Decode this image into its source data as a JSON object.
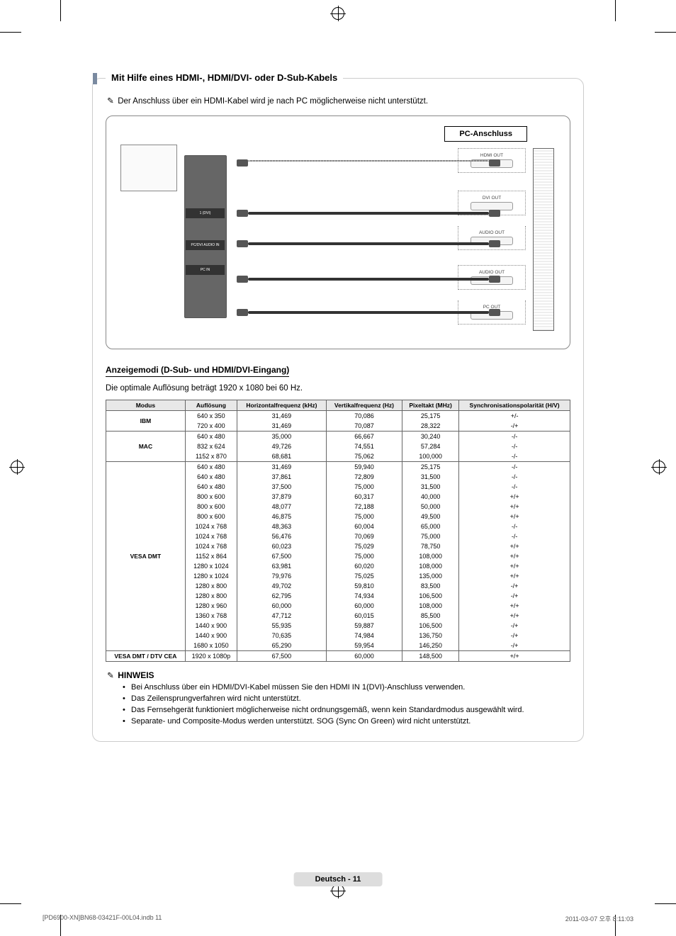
{
  "heading": "Mit Hilfe eines HDMI-, HDMI/DVI- oder D-Sub-Kabels",
  "top_note": "Der Anschluss über ein HDMI-Kabel wird je nach PC möglicherweise nicht unterstützt.",
  "note_icon": "✎",
  "diagram": {
    "pc_label": "PC-Anschluss",
    "ports": {
      "hdmi": "HDMI OUT",
      "dvi": "DVI OUT",
      "audio1": "AUDIO OUT",
      "audio2": "AUDIO OUT",
      "pcout": "PC OUT"
    },
    "tv_ports": {
      "dvi": "1 (DVI)",
      "audio": "PC/DVI AUDIO IN",
      "pcin": "PC IN"
    }
  },
  "subheading": "Anzeigemodi (D-Sub- und HDMI/DVI-Eingang)",
  "subdesc": "Die optimale Auflösung beträgt 1920 x 1080 bei 60 Hz.",
  "table": {
    "columns": [
      "Modus",
      "Auflösung",
      "Horizontalfrequenz (kHz)",
      "Vertikalfrequenz (Hz)",
      "Pixeltakt (MHz)",
      "Synchronisationspolarität (H/V)"
    ],
    "groups": [
      {
        "mode": "IBM",
        "rows": [
          [
            "640 x 350",
            "31,469",
            "70,086",
            "25,175",
            "+/-"
          ],
          [
            "720 x 400",
            "31,469",
            "70,087",
            "28,322",
            "-/+"
          ]
        ]
      },
      {
        "mode": "MAC",
        "rows": [
          [
            "640 x 480",
            "35,000",
            "66,667",
            "30,240",
            "-/-"
          ],
          [
            "832 x 624",
            "49,726",
            "74,551",
            "57,284",
            "-/-"
          ],
          [
            "1152 x 870",
            "68,681",
            "75,062",
            "100,000",
            "-/-"
          ]
        ]
      },
      {
        "mode": "VESA DMT",
        "rows": [
          [
            "640 x 480",
            "31,469",
            "59,940",
            "25,175",
            "-/-"
          ],
          [
            "640 x 480",
            "37,861",
            "72,809",
            "31,500",
            "-/-"
          ],
          [
            "640 x 480",
            "37,500",
            "75,000",
            "31,500",
            "-/-"
          ],
          [
            "800 x 600",
            "37,879",
            "60,317",
            "40,000",
            "+/+"
          ],
          [
            "800 x 600",
            "48,077",
            "72,188",
            "50,000",
            "+/+"
          ],
          [
            "800 x 600",
            "46,875",
            "75,000",
            "49,500",
            "+/+"
          ],
          [
            "1024 x 768",
            "48,363",
            "60,004",
            "65,000",
            "-/-"
          ],
          [
            "1024 x 768",
            "56,476",
            "70,069",
            "75,000",
            "-/-"
          ],
          [
            "1024 x 768",
            "60,023",
            "75,029",
            "78,750",
            "+/+"
          ],
          [
            "1152 x 864",
            "67,500",
            "75,000",
            "108,000",
            "+/+"
          ],
          [
            "1280 x 1024",
            "63,981",
            "60,020",
            "108,000",
            "+/+"
          ],
          [
            "1280 x 1024",
            "79,976",
            "75,025",
            "135,000",
            "+/+"
          ],
          [
            "1280 x 800",
            "49,702",
            "59,810",
            "83,500",
            "-/+"
          ],
          [
            "1280 x 800",
            "62,795",
            "74,934",
            "106,500",
            "-/+"
          ],
          [
            "1280 x 960",
            "60,000",
            "60,000",
            "108,000",
            "+/+"
          ],
          [
            "1360 x 768",
            "47,712",
            "60,015",
            "85,500",
            "+/+"
          ],
          [
            "1440 x 900",
            "55,935",
            "59,887",
            "106,500",
            "-/+"
          ],
          [
            "1440 x 900",
            "70,635",
            "74,984",
            "136,750",
            "-/+"
          ],
          [
            "1680 x 1050",
            "65,290",
            "59,954",
            "146,250",
            "-/+"
          ]
        ]
      },
      {
        "mode": "VESA DMT / DTV CEA",
        "rows": [
          [
            "1920 x 1080p",
            "67,500",
            "60,000",
            "148,500",
            "+/+"
          ]
        ]
      }
    ]
  },
  "hinweis": {
    "title": "HINWEIS",
    "items": [
      "Bei Anschluss über ein HDMI/DVI-Kabel müssen Sie den HDMI IN 1(DVI)-Anschluss verwenden.",
      "Das Zeilensprungverfahren wird nicht unterstützt.",
      "Das Fernsehgerät funktioniert möglicherweise nicht ordnungsgemäß, wenn kein Standardmodus ausgewählt wird.",
      "Separate- und Composite-Modus werden unterstützt. SOG (Sync On Green) wird nicht unterstützt."
    ]
  },
  "footer": {
    "page_label": "Deutsch - 11",
    "doc_left": "[PD6900-XN]BN68-03421F-00L04.indb   11",
    "doc_right": "2011-03-07   오후 8:11:03"
  },
  "colors": {
    "border": "#cccccc",
    "accent": "#7a8aa0",
    "table_header_bg": "#e8e8e8",
    "table_border": "#666666",
    "footer_bg": "#dddddd"
  }
}
